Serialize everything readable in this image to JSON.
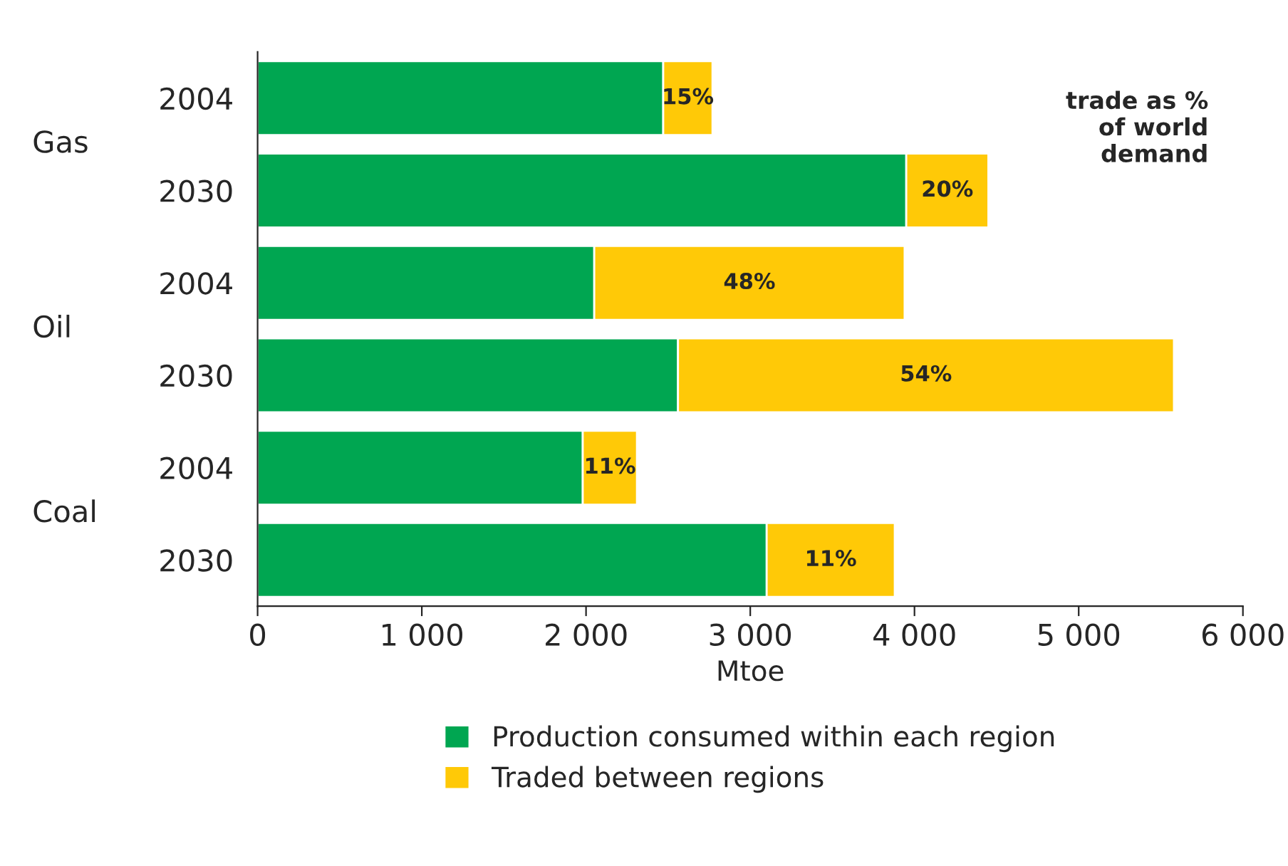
{
  "chart_data": {
    "type": "bar",
    "orientation": "horizontal",
    "stacked": true,
    "xlabel": "Mtoe",
    "categories": [
      "2004",
      "2030",
      "2004",
      "2030",
      "2004",
      "2030"
    ],
    "series": [
      {
        "name": "Production consumed within each region",
        "color": "#00a651",
        "values": [
          2470,
          3950,
          2050,
          2560,
          1980,
          3100
        ]
      },
      {
        "name": "Traded between regions",
        "color": "#ffc907",
        "values": [
          300,
          500,
          1890,
          3020,
          330,
          780
        ]
      }
    ],
    "xlim": [
      0,
      6000
    ],
    "xticks": [
      0,
      {
        "value": 1000,
        "label": "1 000"
      },
      {
        "value": 2000,
        "label": "2 000"
      },
      {
        "value": 3000,
        "label": "3 000"
      },
      {
        "value": 4000,
        "label": "4 000"
      },
      {
        "value": 5000,
        "label": "5 000"
      },
      {
        "value": 6000,
        "label": "6 000"
      }
    ],
    "annotations": [
      "Gas",
      "Oil",
      "Coal",
      "trade as %\nof world\ndemand",
      "15%",
      "20%",
      "48%",
      "54%",
      "11%",
      "11%"
    ],
    "grid": false,
    "legend": "bottom"
  }
}
